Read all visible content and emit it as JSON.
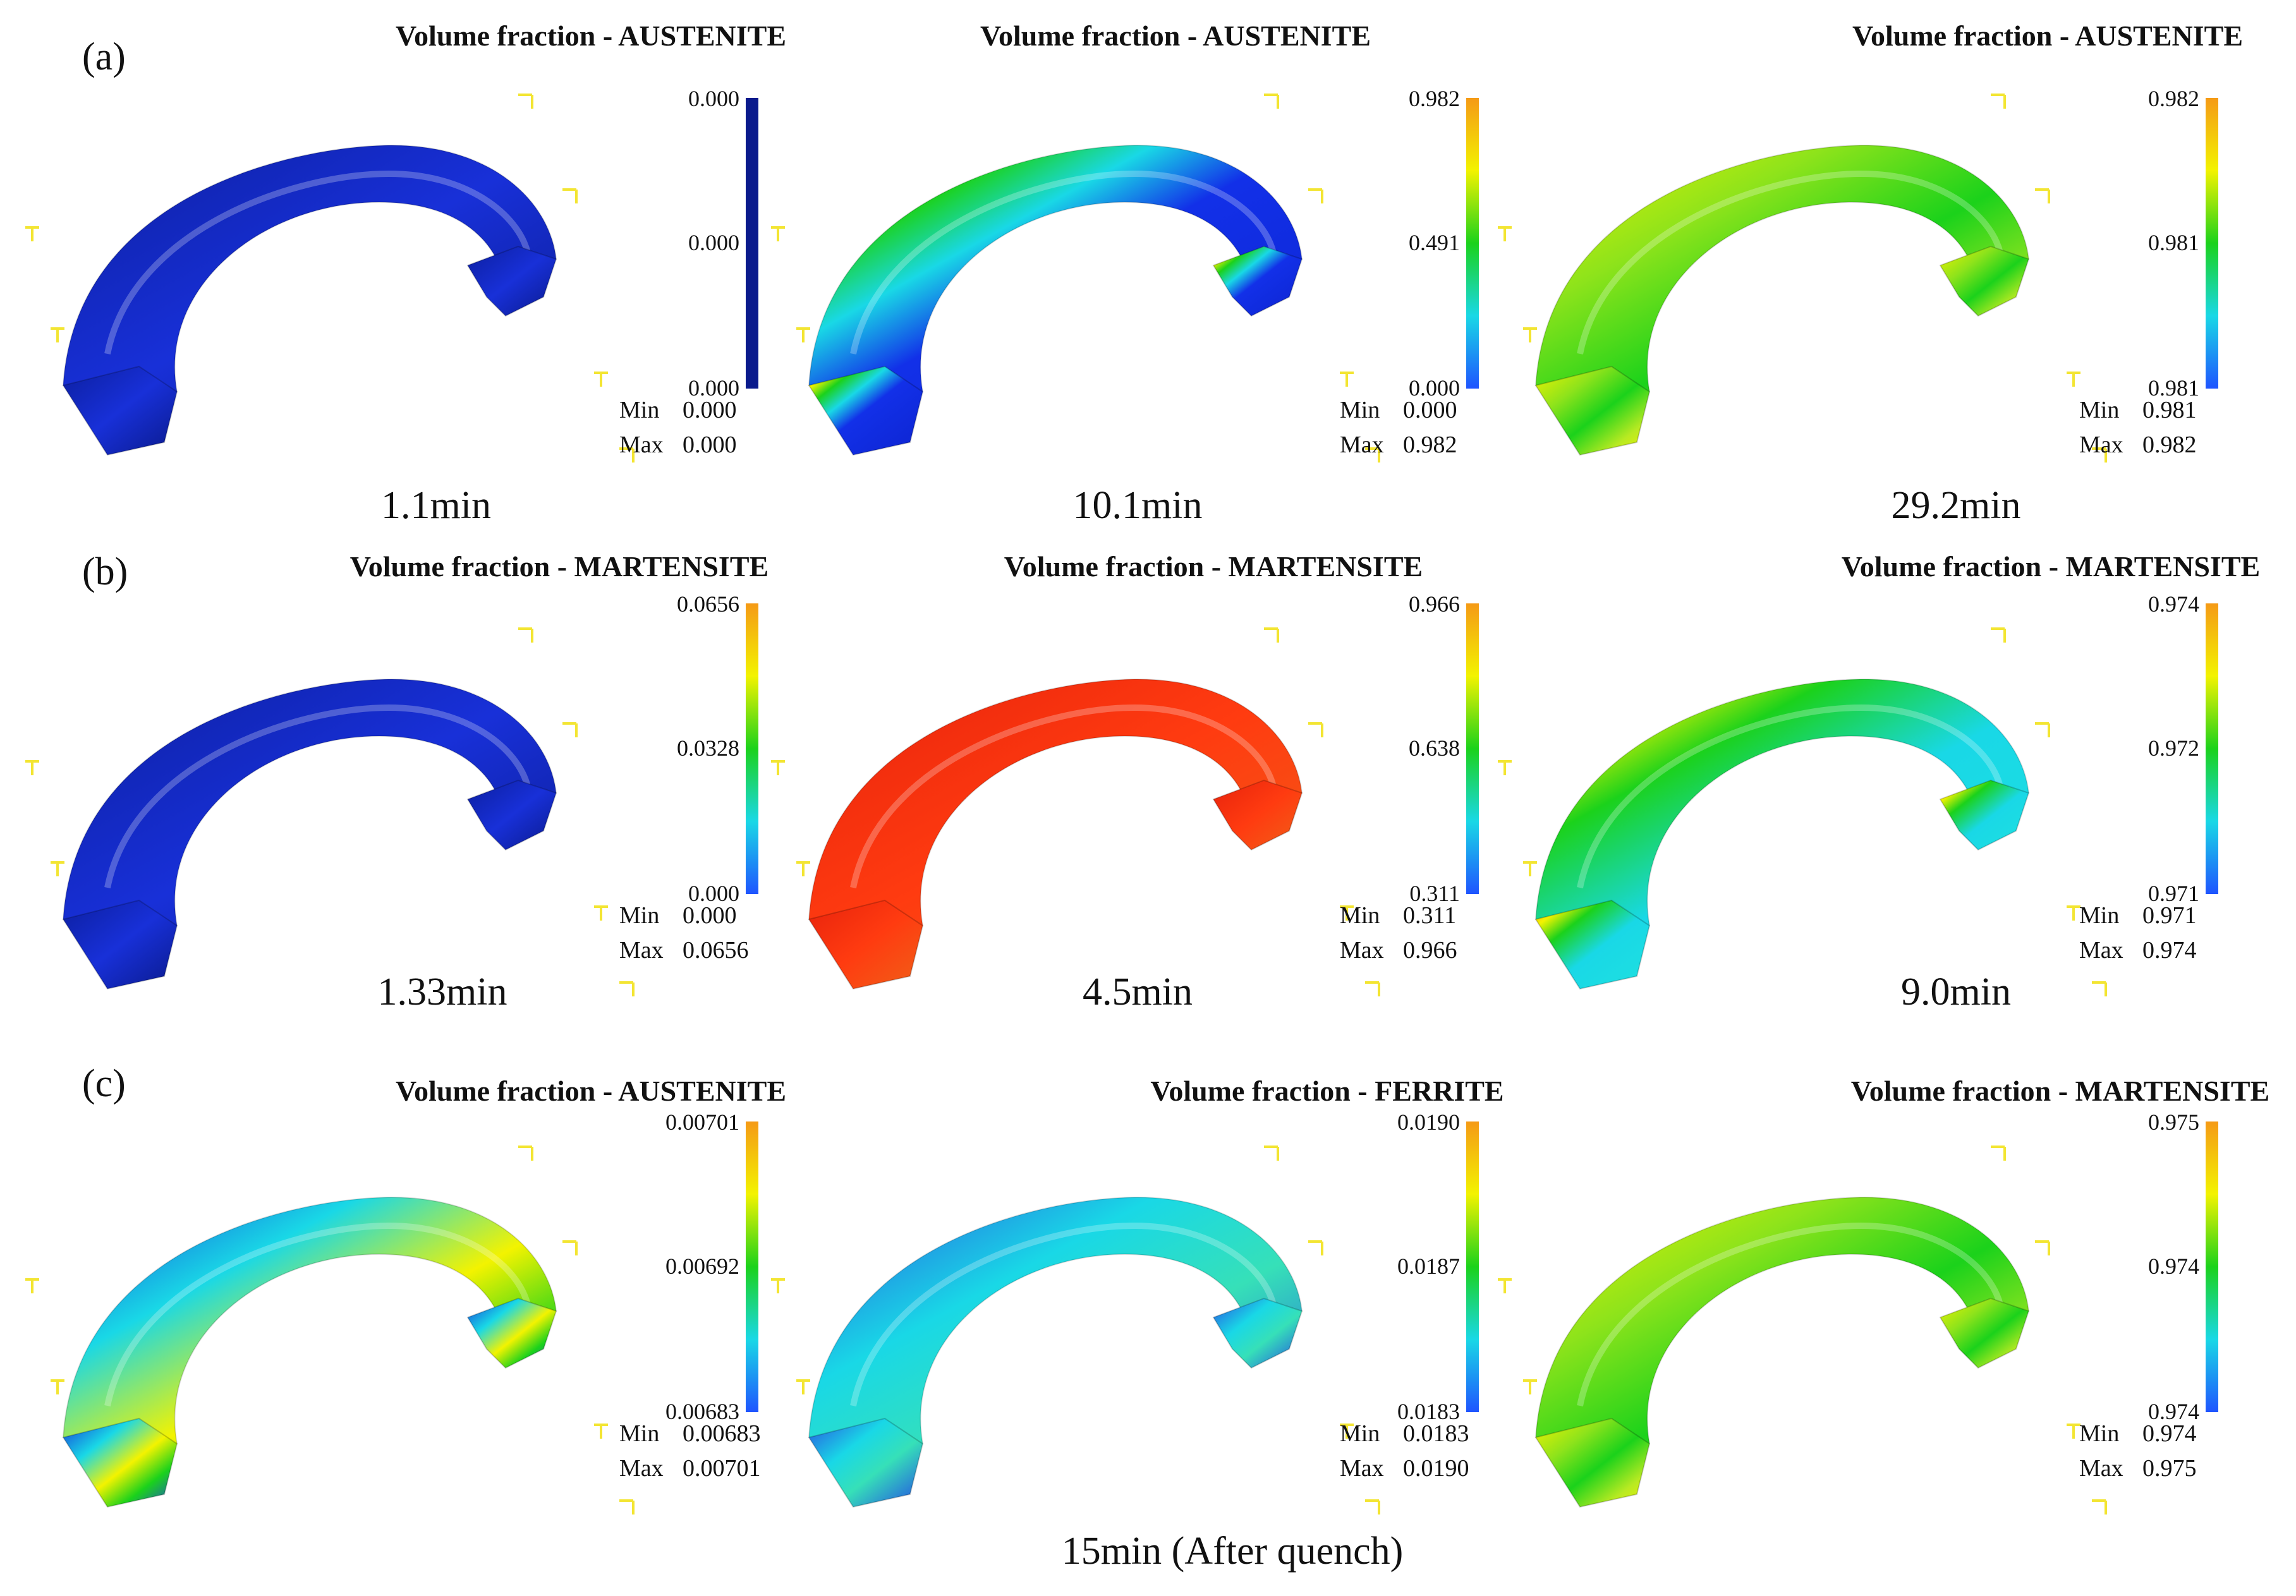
{
  "colors": {
    "scale_low": "#1f54ff",
    "scale_mid_low": "#19d8e6",
    "scale_mid": "#1bd21b",
    "scale_mid_high": "#f3f300",
    "scale_high": "#f59a16",
    "uniform_dark_blue": "#0a1a8c",
    "hot_red": "#e8230c",
    "glyph_yellow": "#f3e532",
    "text": "#111111"
  },
  "icons": {
    "axis_marker": "corner-tick-icon"
  },
  "rows": [
    {
      "label": "(a)",
      "panels": [
        {
          "title": "Volume fraction - AUSTENITE",
          "field": "uniform-dark",
          "legend": {
            "uniform": true,
            "ticks": [
              "0.000",
              "0.000",
              "0.000"
            ],
            "min_label": "Min",
            "min": "0.000",
            "max_label": "Max",
            "max": "0.000"
          },
          "caption": "1.1min"
        },
        {
          "title": "Volume fraction - AUSTENITE",
          "field": "blue-with-red-rim",
          "legend": {
            "uniform": false,
            "ticks": [
              "0.982",
              "0.491",
              "0.000"
            ],
            "min_label": "Min",
            "min": "0.000",
            "max_label": "Max",
            "max": "0.982"
          },
          "caption": "10.1min"
        },
        {
          "title": "Volume fraction - AUSTENITE",
          "field": "green-yellow",
          "legend": {
            "uniform": false,
            "ticks": [
              "0.982",
              "0.981",
              "0.981"
            ],
            "min_label": "Min",
            "min": "0.981",
            "max_label": "Max",
            "max": "0.982"
          },
          "caption": "29.2min"
        }
      ]
    },
    {
      "label": "(b)",
      "panels": [
        {
          "title": "Volume fraction - MARTENSITE",
          "field": "uniform-dark",
          "legend": {
            "uniform": false,
            "ticks": [
              "0.0656",
              "0.0328",
              "0.000"
            ],
            "min_label": "Min",
            "min": "0.000",
            "max_label": "Max",
            "max": "0.0656"
          },
          "caption": "1.33min"
        },
        {
          "title": "Volume fraction - MARTENSITE",
          "field": "red",
          "legend": {
            "uniform": false,
            "ticks": [
              "0.966",
              "0.638",
              "0.311"
            ],
            "min_label": "Min",
            "min": "0.311",
            "max_label": "Max",
            "max": "0.966"
          },
          "caption": "4.5min"
        },
        {
          "title": "Volume fraction - MARTENSITE",
          "field": "cyan-green-rim",
          "legend": {
            "uniform": false,
            "ticks": [
              "0.974",
              "0.972",
              "0.971"
            ],
            "min_label": "Min",
            "min": "0.971",
            "max_label": "Max",
            "max": "0.974"
          },
          "caption": "9.0min"
        }
      ]
    },
    {
      "label": "(c)",
      "panels": [
        {
          "title": "Volume fraction - AUSTENITE",
          "field": "blue-green-yellow",
          "legend": {
            "uniform": false,
            "ticks": [
              "0.00701",
              "0.00692",
              "0.00683"
            ],
            "min_label": "Min",
            "min": "0.00683",
            "max_label": "Max",
            "max": "0.00701"
          },
          "caption": ""
        },
        {
          "title": "Volume fraction - FERRITE",
          "field": "cyan-blue",
          "legend": {
            "uniform": false,
            "ticks": [
              "0.0190",
              "0.0187",
              "0.0183"
            ],
            "min_label": "Min",
            "min": "0.0183",
            "max_label": "Max",
            "max": "0.0190"
          },
          "caption": ""
        },
        {
          "title": "Volume fraction - MARTENSITE",
          "field": "green-yellow",
          "legend": {
            "uniform": false,
            "ticks": [
              "0.975",
              "0.974",
              "0.974"
            ],
            "min_label": "Min",
            "min": "0.974",
            "max_label": "Max",
            "max": "0.975"
          },
          "caption": ""
        }
      ]
    }
  ],
  "bottom_caption": "15min (After quench)"
}
